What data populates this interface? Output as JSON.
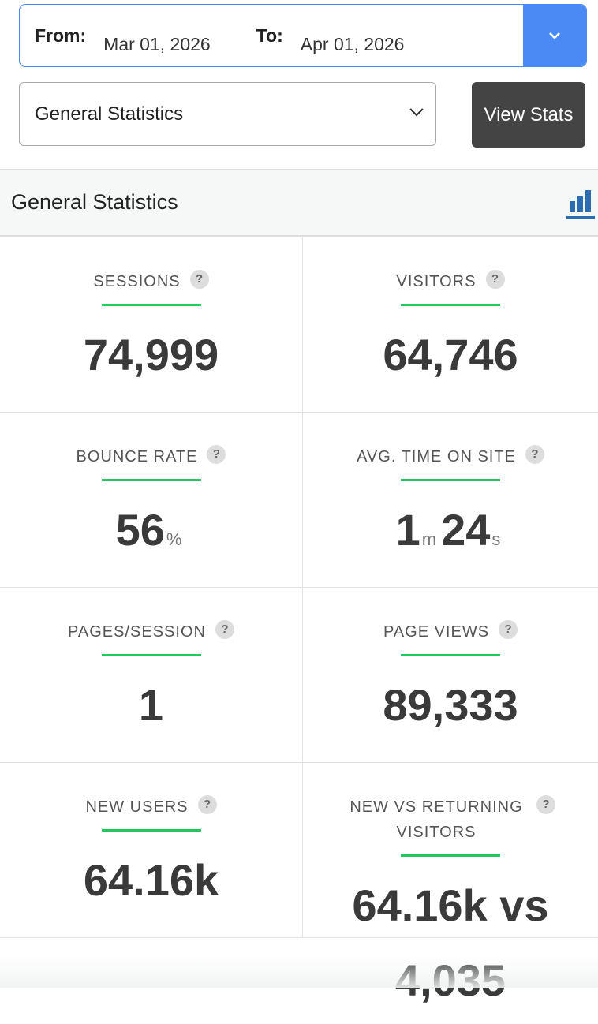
{
  "date_range": {
    "from_label": "From:",
    "from_value": "Mar 01, 2026",
    "to_label": "To:",
    "to_value": "Apr 01, 2026"
  },
  "report_select": "General Statistics",
  "view_button": "View Stats",
  "panel": {
    "title": "General Statistics",
    "help_icon": "?",
    "stats": [
      {
        "label": "SESSIONS",
        "value": [
          "74,999"
        ]
      },
      {
        "label": "VISITORS",
        "value": [
          "64,746"
        ]
      },
      {
        "label": "BOUNCE RATE",
        "value": [
          "56",
          "%"
        ]
      },
      {
        "label": "AVG. TIME ON SITE",
        "value": [
          "1",
          "m",
          "24",
          "s"
        ]
      },
      {
        "label": "PAGES/SESSION",
        "value": [
          "1"
        ]
      },
      {
        "label": "PAGE VIEWS",
        "value": [
          "89,333"
        ]
      },
      {
        "label": "NEW USERS",
        "value": [
          "64.16k"
        ]
      },
      {
        "label": "NEW VS RETURNING VISITORS",
        "value": [
          "64.16k vs 4,035"
        ]
      }
    ]
  }
}
